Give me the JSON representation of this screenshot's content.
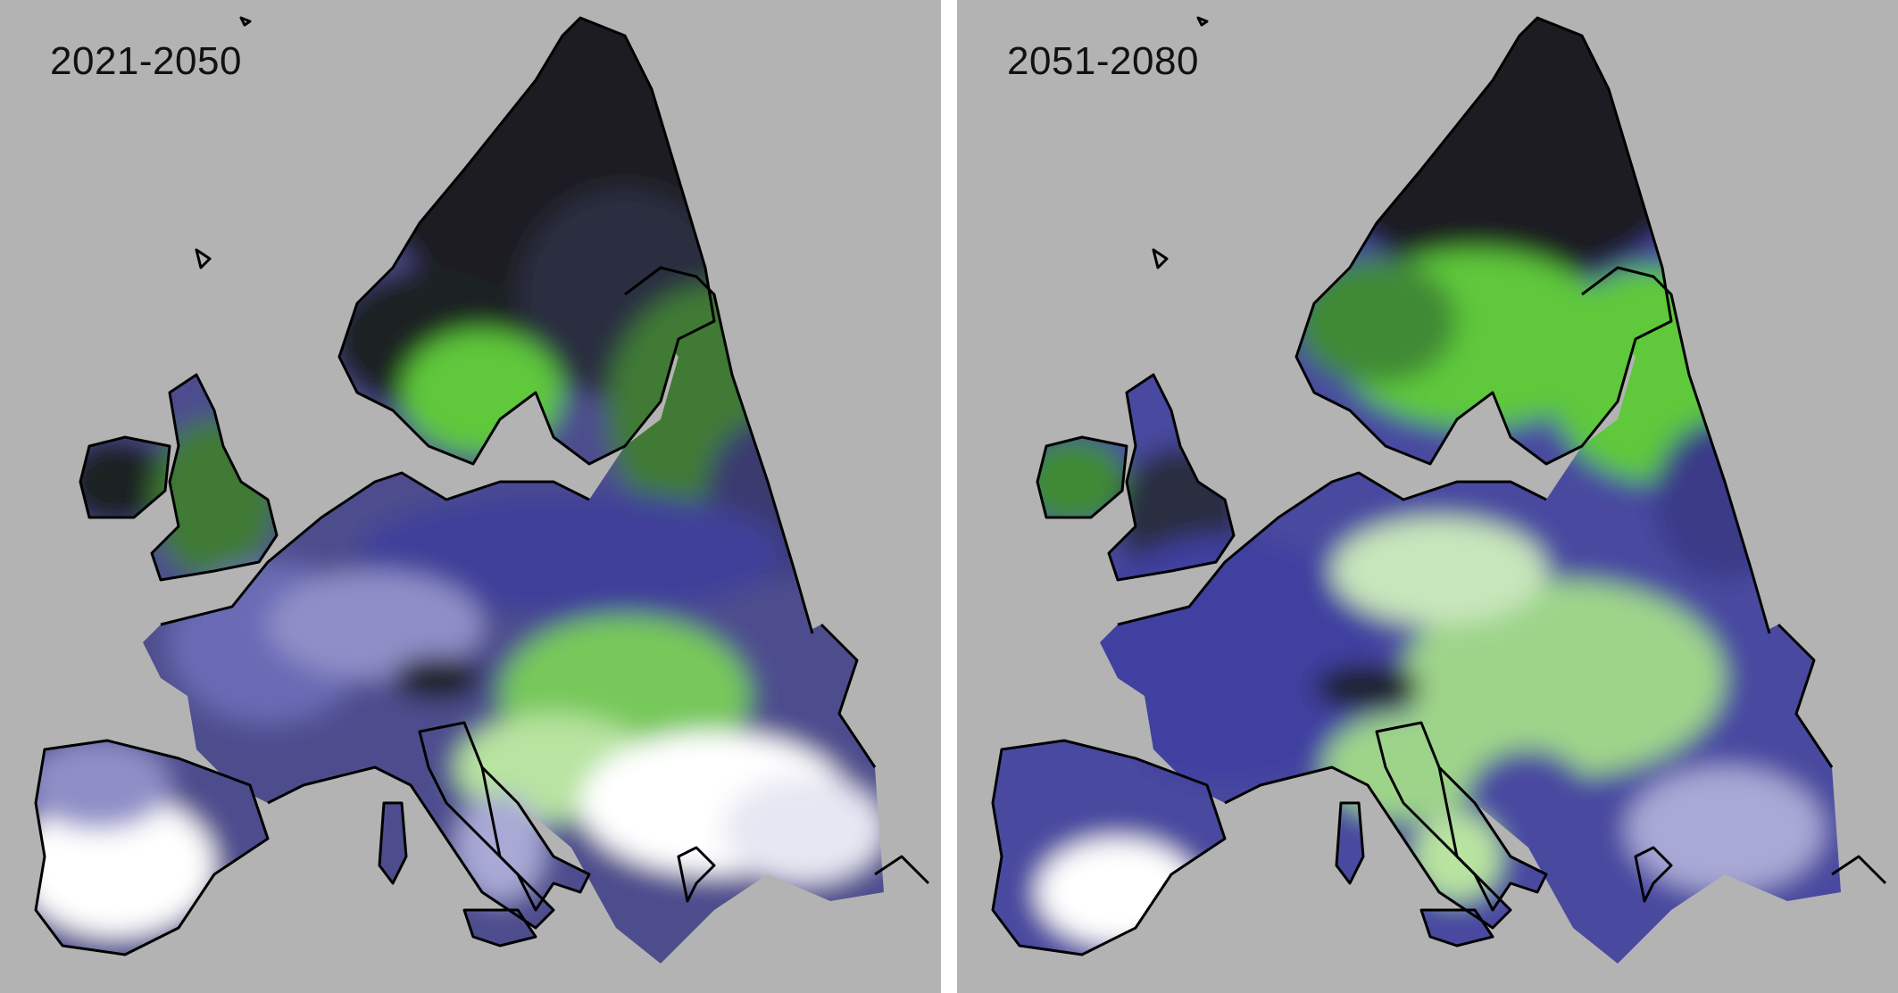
{
  "panels": [
    {
      "title": "2021-2050"
    },
    {
      "title": "2051-2080"
    }
  ],
  "colors": {
    "background": "#b3b3b3",
    "coastline": "#000000",
    "dark": "#1a1d22",
    "green": "#5fc83a",
    "pale_green": "#b8e3a0",
    "blue": "#4a4aa0",
    "pale_blue": "#a9a9d6",
    "white": "#ffffff"
  }
}
